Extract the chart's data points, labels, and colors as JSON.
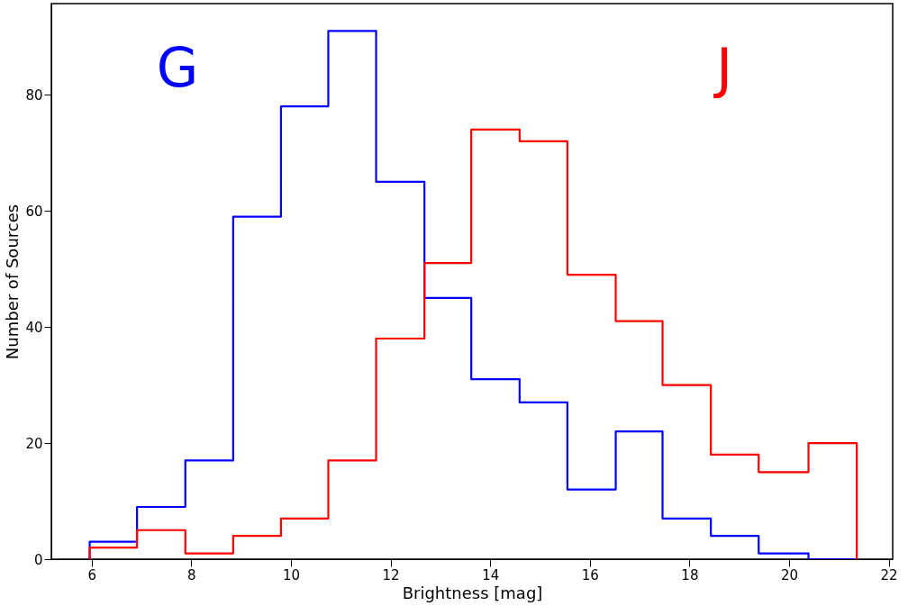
{
  "chart_data": {
    "type": "histogram",
    "xlabel": "Brightness [mag]",
    "ylabel": "Number of Sources",
    "bins": [
      5.96,
      6.91,
      7.88,
      8.84,
      9.8,
      10.75,
      11.71,
      12.68,
      13.62,
      14.59,
      15.55,
      16.52,
      17.46,
      18.43,
      19.39,
      20.39,
      21.36
    ],
    "series": [
      {
        "name": "G",
        "color": "#0000ff",
        "values": [
          3,
          9,
          17,
          59,
          78,
          91,
          65,
          45,
          31,
          27,
          12,
          22,
          7,
          4,
          1,
          0
        ]
      },
      {
        "name": "J",
        "color": "#ff0000",
        "values": [
          2,
          5,
          1,
          4,
          7,
          17,
          38,
          51,
          74,
          72,
          49,
          41,
          30,
          18,
          15,
          20
        ]
      }
    ],
    "xlim": [
      5.19,
      22.08
    ],
    "ylim": [
      0,
      95.7
    ],
    "xticks": [
      6,
      8,
      10,
      12,
      14,
      16,
      18,
      20,
      22
    ],
    "yticks": [
      0,
      20,
      40,
      60,
      80
    ],
    "grid": false
  }
}
